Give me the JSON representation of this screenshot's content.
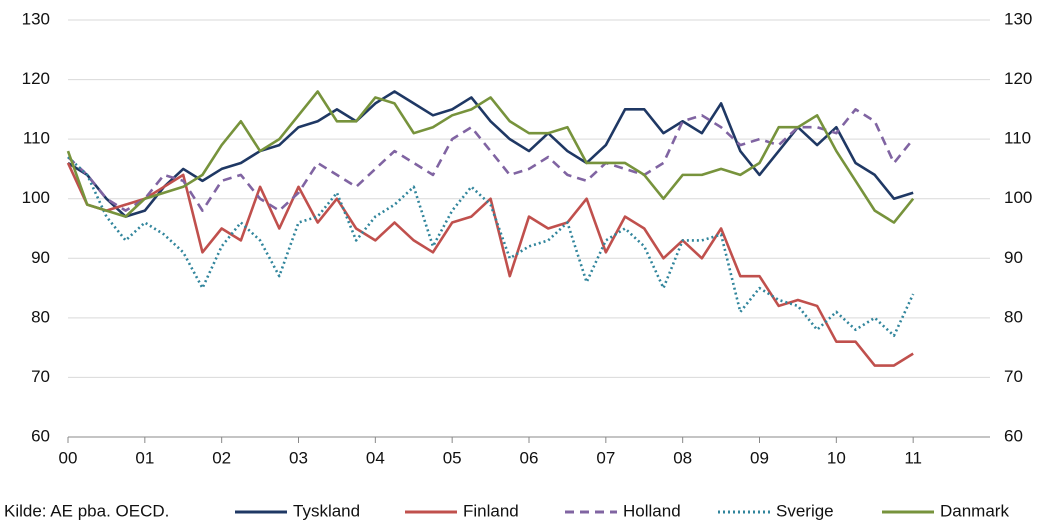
{
  "chart_data": {
    "type": "line",
    "source": "Kilde: AE pba. OECD.",
    "x": [
      0,
      0.25,
      0.5,
      0.75,
      1,
      1.25,
      1.5,
      1.75,
      2,
      2.25,
      2.5,
      2.75,
      3,
      3.25,
      3.5,
      3.75,
      4,
      4.25,
      4.5,
      4.75,
      5,
      5.25,
      5.5,
      5.75,
      6,
      6.25,
      6.5,
      6.75,
      7,
      7.25,
      7.5,
      7.75,
      8,
      8.25,
      8.5,
      8.75,
      9,
      9.25,
      9.5,
      9.75,
      10,
      10.25,
      10.5,
      10.75,
      11
    ],
    "xlim": [
      0,
      12
    ],
    "xticks": [
      {
        "value": 0,
        "label": "00"
      },
      {
        "value": 1,
        "label": "01"
      },
      {
        "value": 2,
        "label": "02"
      },
      {
        "value": 3,
        "label": "03"
      },
      {
        "value": 4,
        "label": "04"
      },
      {
        "value": 5,
        "label": "05"
      },
      {
        "value": 6,
        "label": "06"
      },
      {
        "value": 7,
        "label": "07"
      },
      {
        "value": 8,
        "label": "08"
      },
      {
        "value": 9,
        "label": "09"
      },
      10,
      11
    ],
    "ylim": [
      60,
      130
    ],
    "yticks": [
      60,
      70,
      80,
      90,
      100,
      110,
      120,
      130
    ],
    "y2lim": [
      60,
      130
    ],
    "y2ticks": [
      60,
      70,
      80,
      90,
      100,
      110,
      120,
      130
    ],
    "grid": true,
    "legend": "bottom",
    "series": [
      {
        "name": "Tyskland",
        "color": "#1f3864",
        "dash": "solid",
        "values": [
          106,
          104,
          100,
          97,
          98,
          102,
          105,
          103,
          105,
          106,
          108,
          109,
          112,
          113,
          115,
          113,
          116,
          118,
          116,
          114,
          115,
          117,
          113,
          110,
          108,
          111,
          108,
          106,
          109,
          115,
          115,
          111,
          113,
          111,
          116,
          108,
          104,
          108,
          112,
          109,
          112,
          106,
          104,
          100,
          101
        ]
      },
      {
        "name": "Finland",
        "color": "#c0504d",
        "dash": "solid",
        "values": [
          106,
          99,
          98,
          99,
          100,
          102,
          104,
          91,
          95,
          93,
          102,
          95,
          102,
          96,
          100,
          95,
          93,
          96,
          93,
          91,
          96,
          97,
          100,
          87,
          97,
          95,
          96,
          100,
          91,
          97,
          95,
          90,
          93,
          90,
          95,
          87,
          87,
          82,
          83,
          82,
          76,
          76,
          72,
          72,
          74
        ]
      },
      {
        "name": "Holland",
        "color": "#8064a2",
        "dash": "dashed",
        "values": [
          107,
          104,
          100,
          98,
          100,
          104,
          103,
          98,
          103,
          104,
          100,
          98,
          101,
          106,
          104,
          102,
          105,
          108,
          106,
          104,
          110,
          112,
          108,
          104,
          105,
          107,
          104,
          103,
          106,
          105,
          104,
          106,
          113,
          114,
          112,
          109,
          110,
          109,
          112,
          112,
          111,
          115,
          113,
          106,
          110
        ]
      },
      {
        "name": "Sverige",
        "color": "#31859c",
        "dash": "dotted",
        "values": [
          107,
          104,
          97,
          93,
          96,
          94,
          91,
          85,
          92,
          96,
          93,
          87,
          96,
          97,
          101,
          93,
          97,
          99,
          102,
          92,
          98,
          102,
          99,
          90,
          92,
          93,
          96,
          86,
          93,
          95,
          92,
          85,
          93,
          93,
          94,
          81,
          85,
          83,
          82,
          78,
          81,
          78,
          80,
          77,
          84
        ]
      },
      {
        "name": "Danmark",
        "color": "#77933c",
        "dash": "solid",
        "values": [
          108,
          99,
          98,
          97,
          100,
          101,
          102,
          104,
          109,
          113,
          108,
          110,
          114,
          118,
          113,
          113,
          117,
          116,
          111,
          112,
          114,
          115,
          117,
          113,
          111,
          111,
          112,
          106,
          106,
          106,
          104,
          100,
          104,
          104,
          105,
          104,
          106,
          112,
          112,
          114,
          108,
          103,
          98,
          96,
          100
        ]
      }
    ]
  }
}
